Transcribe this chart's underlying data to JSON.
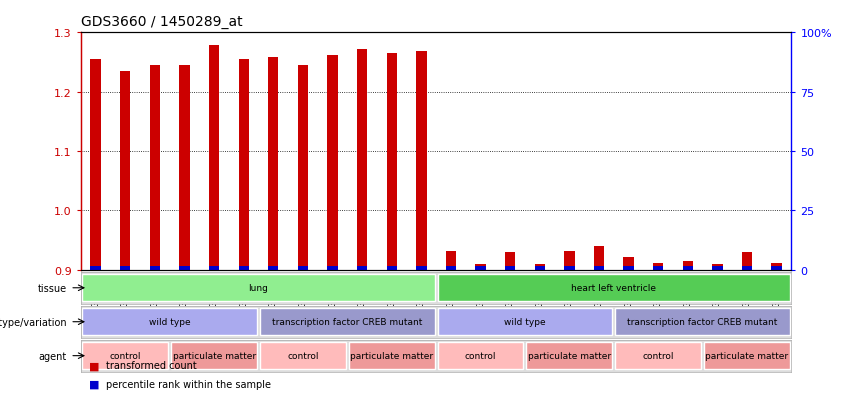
{
  "title": "GDS3660 / 1450289_at",
  "samples": [
    "GSM435909",
    "GSM435910",
    "GSM435911",
    "GSM435912",
    "GSM435913",
    "GSM435914",
    "GSM435915",
    "GSM435916",
    "GSM435917",
    "GSM435918",
    "GSM435919",
    "GSM435920",
    "GSM435921",
    "GSM435922",
    "GSM435923",
    "GSM435924",
    "GSM435925",
    "GSM435926",
    "GSM435927",
    "GSM435928",
    "GSM435929",
    "GSM435930",
    "GSM435931",
    "GSM435932"
  ],
  "red_values": [
    1.255,
    1.235,
    1.245,
    1.244,
    1.278,
    1.255,
    1.258,
    1.244,
    1.262,
    1.272,
    1.265,
    1.269,
    0.932,
    0.91,
    0.93,
    0.91,
    0.932,
    0.94,
    0.922,
    0.912,
    0.915,
    0.91,
    0.93,
    0.912
  ],
  "ylim": [
    0.9,
    1.3
  ],
  "yticks_left": [
    0.9,
    1.0,
    1.1,
    1.2,
    1.3
  ],
  "yticks_right": [
    0,
    25,
    50,
    75,
    100
  ],
  "yticks_right_labels": [
    "0",
    "25",
    "50",
    "75",
    "100%"
  ],
  "tissue_groups": [
    {
      "label": "lung",
      "start": 0,
      "end": 11,
      "color": "#90EE90"
    },
    {
      "label": "heart left ventricle",
      "start": 12,
      "end": 23,
      "color": "#55CC55"
    }
  ],
  "genotype_groups": [
    {
      "label": "wild type",
      "start": 0,
      "end": 5,
      "color": "#AAAAEE"
    },
    {
      "label": "transcription factor CREB mutant",
      "start": 6,
      "end": 11,
      "color": "#9999CC"
    },
    {
      "label": "wild type",
      "start": 12,
      "end": 17,
      "color": "#AAAAEE"
    },
    {
      "label": "transcription factor CREB mutant",
      "start": 18,
      "end": 23,
      "color": "#9999CC"
    }
  ],
  "agent_groups": [
    {
      "label": "control",
      "start": 0,
      "end": 2,
      "color": "#FFBBBB"
    },
    {
      "label": "particulate matter",
      "start": 3,
      "end": 5,
      "color": "#EE9999"
    },
    {
      "label": "control",
      "start": 6,
      "end": 8,
      "color": "#FFBBBB"
    },
    {
      "label": "particulate matter",
      "start": 9,
      "end": 11,
      "color": "#EE9999"
    },
    {
      "label": "control",
      "start": 12,
      "end": 14,
      "color": "#FFBBBB"
    },
    {
      "label": "particulate matter",
      "start": 15,
      "end": 17,
      "color": "#EE9999"
    },
    {
      "label": "control",
      "start": 18,
      "end": 20,
      "color": "#FFBBBB"
    },
    {
      "label": "particulate matter",
      "start": 21,
      "end": 23,
      "color": "#EE9999"
    }
  ],
  "red_bar_width": 0.35,
  "blue_bar_width": 0.35,
  "blue_bar_height": 0.006,
  "red_color": "#CC0000",
  "blue_color": "#0000CC",
  "legend_red": "transformed count",
  "legend_blue": "percentile rank within the sample",
  "row_bg": "#DDDDDD"
}
